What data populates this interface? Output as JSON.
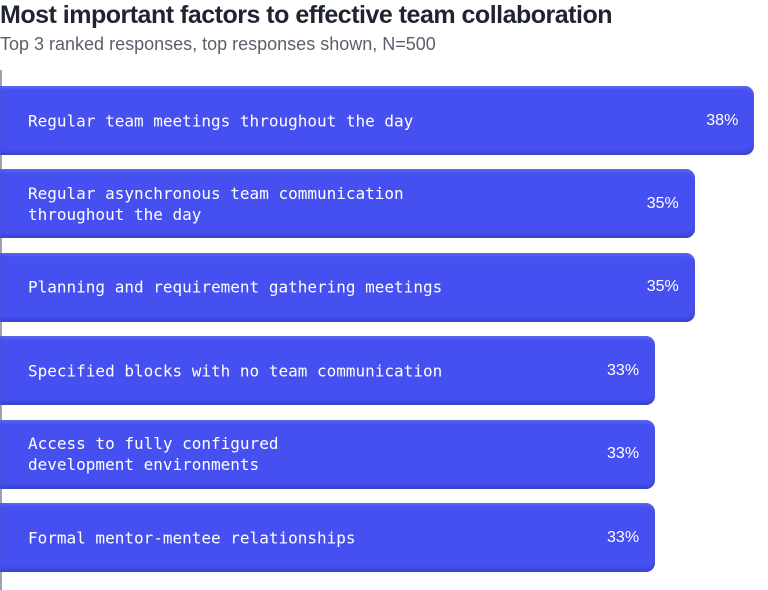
{
  "chart_data": {
    "type": "bar",
    "orientation": "horizontal",
    "title": "Most important factors to effective team collaboration",
    "subtitle": "Top 3 ranked responses, top responses shown, N=500",
    "categories": [
      "Regular team meetings throughout the day",
      "Regular asynchronous team communication\nthroughout the day",
      "Planning and requirement gathering meetings",
      "Specified blocks with no team communication",
      "Access to fully configured\ndevelopment environments",
      "Formal mentor-mentee relationships"
    ],
    "values": [
      38,
      35,
      35,
      33,
      33,
      33
    ],
    "value_labels": [
      "38%",
      "35%",
      "35%",
      "33%",
      "33%",
      "33%"
    ],
    "unit": "%",
    "bar_color": "#4650f0",
    "grid": false,
    "legend": "none"
  }
}
